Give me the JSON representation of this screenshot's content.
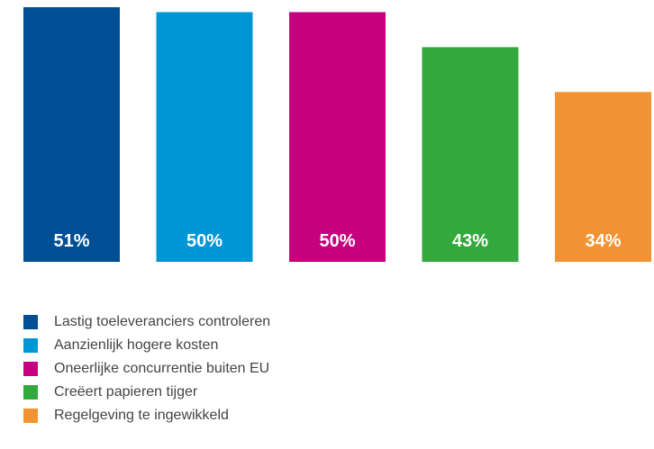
{
  "chart_data": {
    "type": "bar",
    "categories": [
      "Lastig toeleveranciers controleren",
      "Aanzienlijk hogere kosten",
      "Oneerlijke concurrentie buiten EU",
      "Creëert papieren tijger",
      "Regelgeving te ingewikkeld"
    ],
    "values": [
      51,
      50,
      50,
      43,
      34
    ],
    "value_labels": [
      "51%",
      "50%",
      "50%",
      "43%",
      "34%"
    ],
    "colors": [
      "#004f95",
      "#0096d6",
      "#c6007e",
      "#33a83c",
      "#f39233"
    ],
    "ylim": [
      0,
      51
    ],
    "grid": false,
    "legend_position": "bottom-left",
    "legend": [
      {
        "label": "Lastig toeleveranciers controleren",
        "color": "#004f95"
      },
      {
        "label": "Aanzienlijk hogere kosten",
        "color": "#0096d6"
      },
      {
        "label": "Oneerlijke concurrentie buiten EU",
        "color": "#c6007e"
      },
      {
        "label": "Creëert papieren tijger",
        "color": "#33a83c"
      },
      {
        "label": "Regelgeving te ingewikkeld",
        "color": "#f39233"
      }
    ]
  }
}
